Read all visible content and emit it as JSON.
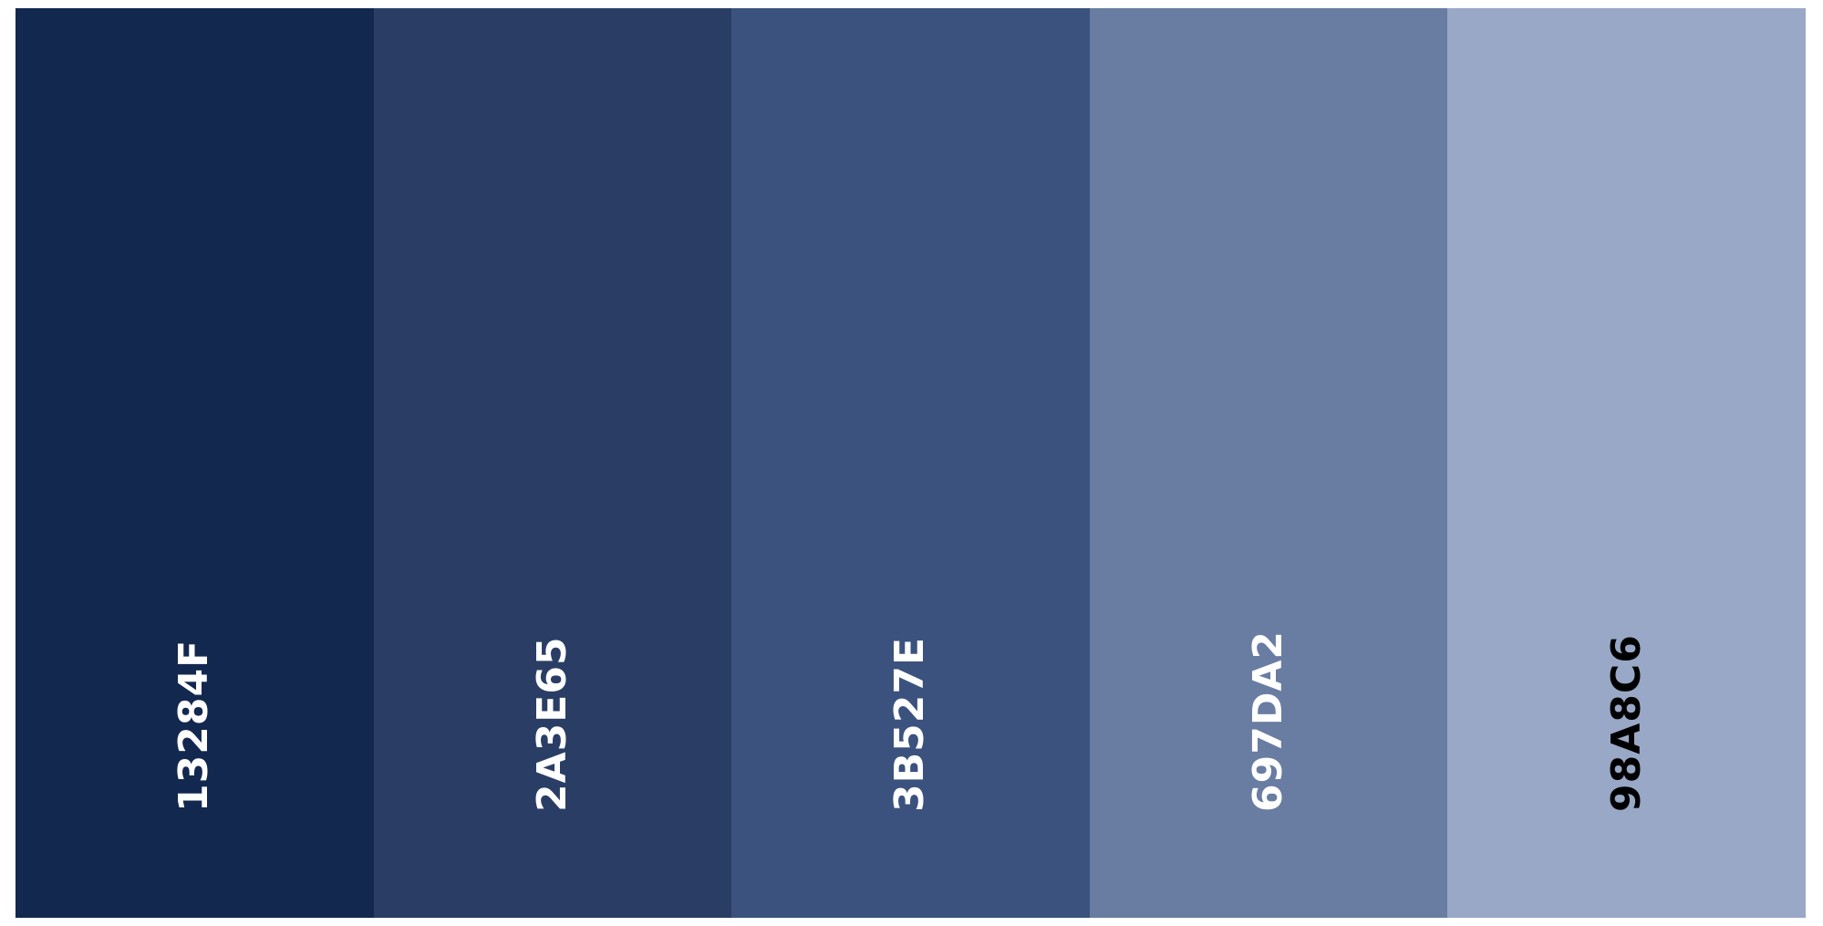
{
  "palette": {
    "swatches": [
      {
        "hex": "13284F",
        "color": "#13284F",
        "label_color": "#FFFFFF"
      },
      {
        "hex": "2A3E65",
        "color": "#2A3E65",
        "label_color": "#FFFFFF"
      },
      {
        "hex": "3B527E",
        "color": "#3B527E",
        "label_color": "#FFFFFF"
      },
      {
        "hex": "697DA2",
        "color": "#697DA2",
        "label_color": "#FFFFFF"
      },
      {
        "hex": "98A8C6",
        "color": "#98A8C6",
        "label_color": "#000000"
      }
    ]
  }
}
